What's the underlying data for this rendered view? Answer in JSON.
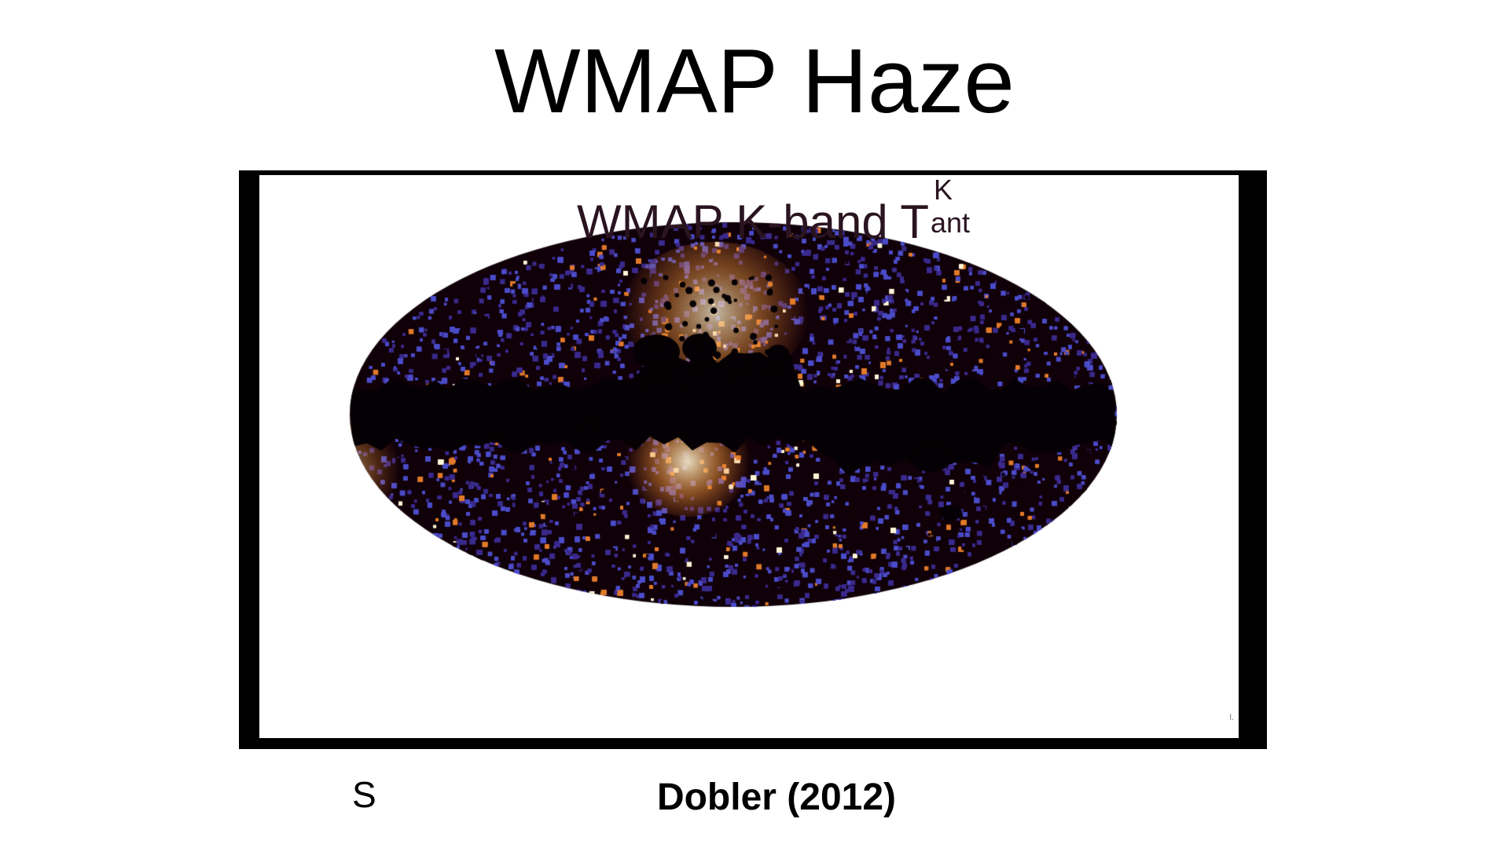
{
  "slide": {
    "title": "WMAP Haze",
    "left_letter": "S",
    "citation": "Dobler (2012)"
  },
  "figure": {
    "map_title_main": "WMAP K-band T",
    "map_title_sup": "K",
    "map_title_sub": "ant",
    "corner_mark": "l.",
    "colors": {
      "background_dark": "#100008",
      "mid_purple": "#3a2a8c",
      "blue": "#4b4cc8",
      "orange": "#e07a2a",
      "hot_white": "#fff6d8",
      "frame": "#000000"
    }
  }
}
